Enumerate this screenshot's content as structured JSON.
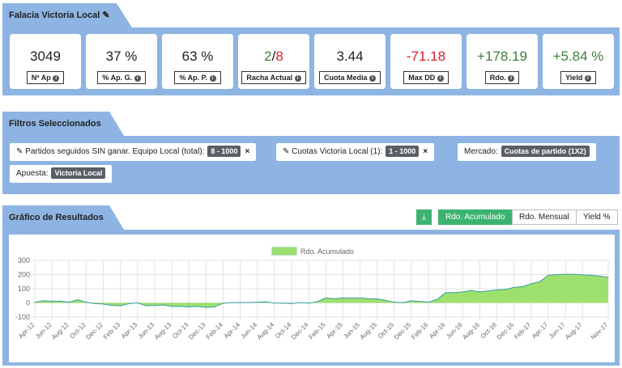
{
  "header": {
    "title": "Falacia Victoria Local",
    "edit_icon": "pencil-icon"
  },
  "stats": [
    {
      "value": "3049",
      "label": "Nº Ap"
    },
    {
      "value": "37 %",
      "label": "% Ap. G."
    },
    {
      "value": "63 %",
      "label": "% Ap. P."
    },
    {
      "value_win": "2",
      "sep": "/",
      "value_loss": "8",
      "label": "Racha Actual"
    },
    {
      "value": "3.44",
      "label": "Cuota Media"
    },
    {
      "value": "-71.18",
      "label": "Max DD"
    },
    {
      "value": "+178.19",
      "label": "Rdo."
    },
    {
      "value": "+5.84 %",
      "label": "Yield"
    }
  ],
  "filters": {
    "title": "Filtros Seleccionados",
    "items": [
      {
        "label": "Partidos seguidos SIN ganar. Equipo Local (total):",
        "value": "8 - 1000"
      },
      {
        "label": "Cuotas Victoria Local (1):",
        "value": "1 - 1000"
      },
      {
        "label": "Mercado:",
        "value": "Cuotas de partido (1X2)"
      },
      {
        "label": "Apuesta:",
        "value": "Victoria Local"
      }
    ]
  },
  "results": {
    "title": "Gráfico de Resultados",
    "download_icon": "download-icon",
    "tabs": [
      "Rdo. Acumulado",
      "Rdo. Mensual",
      "Yield %"
    ],
    "active_tab": "Rdo. Acumulado"
  },
  "colors": {
    "panel": "#8db4e2",
    "accent": "#3cb371",
    "area": "#9ee06e",
    "line": "#3aa0a0",
    "positive": "#3d7d3d",
    "negative": "#e0202a"
  },
  "chart_data": {
    "type": "area",
    "legend": "Rdo. Acumulado",
    "legend_position": "top",
    "grid": true,
    "ylim": [
      -100,
      300
    ],
    "yticks": [
      300,
      200,
      100,
      0,
      -100
    ],
    "xticks": [
      "Apr-12",
      "Jun-12",
      "Aug-12",
      "Oct-12",
      "Dec-12",
      "Feb-13",
      "Apr-13",
      "Jun-13",
      "Aug-13",
      "Oct-13",
      "Dec-13",
      "Feb-14",
      "Apr-14",
      "Jun-14",
      "Aug-14",
      "Oct-14",
      "Dec-14",
      "Feb-15",
      "Apr-15",
      "Jun-15",
      "Aug-15",
      "Oct-15",
      "Dec-15",
      "Feb-16",
      "Apr-16",
      "Jun-16",
      "Aug-16",
      "Oct-16",
      "Dec-16",
      "Feb-17",
      "Apr-17",
      "Jun-17",
      "Aug-17",
      "Nov-17"
    ],
    "x_start": "Apr-12",
    "x_end": "Nov-17",
    "values": [
      5,
      15,
      12,
      12,
      5,
      22,
      5,
      -5,
      -8,
      -18,
      -20,
      -5,
      0,
      -20,
      -18,
      -15,
      -25,
      -25,
      -28,
      -25,
      -32,
      -28,
      -3,
      2,
      2,
      3,
      5,
      8,
      -2,
      -2,
      -5,
      2,
      -2,
      8,
      35,
      30,
      35,
      35,
      35,
      30,
      28,
      18,
      5,
      2,
      15,
      10,
      5,
      25,
      72,
      72,
      78,
      88,
      78,
      85,
      92,
      95,
      110,
      115,
      135,
      150,
      195,
      200,
      202,
      202,
      198,
      195,
      190,
      180
    ]
  }
}
